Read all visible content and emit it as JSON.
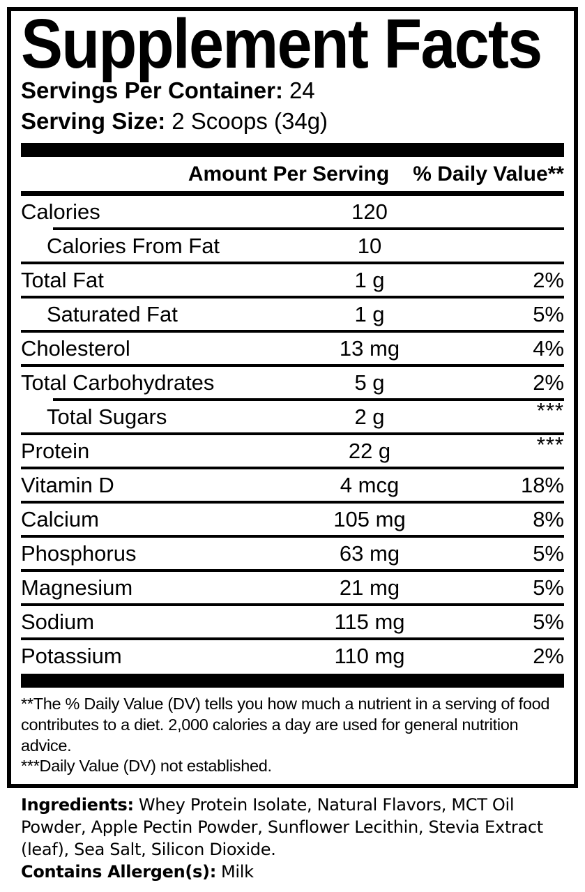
{
  "panel": {
    "title": "Supplement Facts",
    "servings_per_container": {
      "label": "Servings Per Container:",
      "value": "24"
    },
    "serving_size": {
      "label": "Serving Size:",
      "value": "2 Scoops (34g)"
    },
    "columns": {
      "amount": "Amount Per Serving",
      "dv": "% Daily Value**"
    },
    "rows": [
      {
        "name": "Calories",
        "amount": "120",
        "dv": "",
        "indent": false,
        "sep": "none"
      },
      {
        "name": "Calories From Fat",
        "amount": "10",
        "dv": "",
        "indent": true,
        "sep": "indent"
      },
      {
        "name": "Total Fat",
        "amount": "1 g",
        "dv": "2%",
        "indent": false,
        "sep": "full"
      },
      {
        "name": "Saturated Fat",
        "amount": "1 g",
        "dv": "5%",
        "indent": true,
        "sep": "full"
      },
      {
        "name": "Cholesterol",
        "amount": "13 mg",
        "dv": "4%",
        "indent": false,
        "sep": "full"
      },
      {
        "name": "Total Carbohydrates",
        "amount": "5 g",
        "dv": "2%",
        "indent": false,
        "sep": "full"
      },
      {
        "name": "Total Sugars",
        "amount": "2 g",
        "dv": "***",
        "indent": true,
        "sep": "indent"
      },
      {
        "name": "Protein",
        "amount": "22 g",
        "dv": "***",
        "indent": false,
        "sep": "full"
      },
      {
        "name": "Vitamin D",
        "amount": "4 mcg",
        "dv": "18%",
        "indent": false,
        "sep": "full"
      },
      {
        "name": "Calcium",
        "amount": "105 mg",
        "dv": "8%",
        "indent": false,
        "sep": "full"
      },
      {
        "name": "Phosphorus",
        "amount": "63 mg",
        "dv": "5%",
        "indent": false,
        "sep": "full"
      },
      {
        "name": "Magnesium",
        "amount": "21 mg",
        "dv": "5%",
        "indent": false,
        "sep": "full"
      },
      {
        "name": "Sodium",
        "amount": "115 mg",
        "dv": "5%",
        "indent": false,
        "sep": "full"
      },
      {
        "name": "Potassium",
        "amount": "110 mg",
        "dv": "2%",
        "indent": false,
        "sep": "full"
      }
    ],
    "footnotes": [
      "**The % Daily Value (DV) tells you how much a nutrient in a serving of food contributes to a diet. 2,000 calories a day are used for general nutrition advice.",
      "***Daily Value (DV) not established."
    ],
    "ingredients": {
      "label": "Ingredients:",
      "text": "Whey Protein Isolate, Natural Flavors, MCT Oil Powder, Apple Pectin Powder, Sunflower Lecithin, Stevia Extract (leaf), Sea Salt, Silicon Dioxide."
    },
    "allergen": {
      "label": "Contains Allergen(s):",
      "value": "Milk"
    },
    "colors": {
      "text": "#000000",
      "background": "#ffffff"
    }
  }
}
